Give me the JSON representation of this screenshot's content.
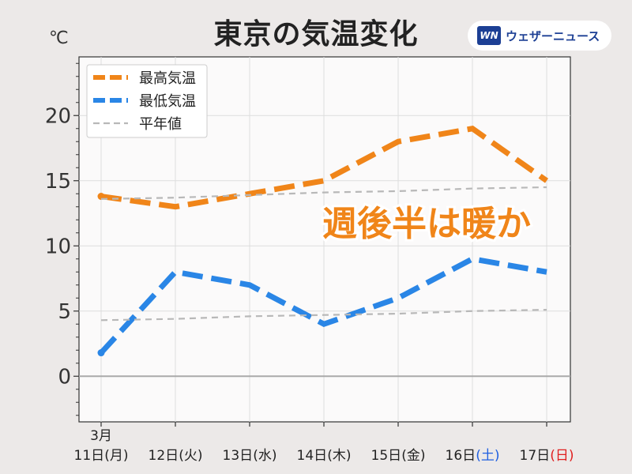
{
  "title": "東京の気温変化",
  "unit": "℃",
  "brand": {
    "logo": "WN",
    "name": "ウェザーニュース"
  },
  "annotation": {
    "text": "週後半は暖か",
    "color": "#f08519"
  },
  "legend": [
    {
      "label": "最高気温",
      "color": "#f08519",
      "style": "dashed-thick"
    },
    {
      "label": "最低気温",
      "color": "#2a86e6",
      "style": "dashed-thick"
    },
    {
      "label": "平年値",
      "color": "#b8b8b8",
      "style": "dashed-thin"
    }
  ],
  "chart_data": {
    "type": "line",
    "month_label": "3月",
    "categories": [
      {
        "day": "11日",
        "dow": "(月)",
        "dow_color": "#222222"
      },
      {
        "day": "12日",
        "dow": "(火)",
        "dow_color": "#222222"
      },
      {
        "day": "13日",
        "dow": "(水)",
        "dow_color": "#222222"
      },
      {
        "day": "14日",
        "dow": "(木)",
        "dow_color": "#222222"
      },
      {
        "day": "15日",
        "dow": "(金)",
        "dow_color": "#222222"
      },
      {
        "day": "16日",
        "dow": "(土)",
        "dow_color": "#1f5fe0"
      },
      {
        "day": "17日",
        "dow": "(日)",
        "dow_color": "#e02020"
      }
    ],
    "series": [
      {
        "name": "最高気温",
        "color": "#f08519",
        "values": [
          13.8,
          13.0,
          14.0,
          15.0,
          18.0,
          19.0,
          15.0
        ]
      },
      {
        "name": "最低気温",
        "color": "#2a86e6",
        "values": [
          1.8,
          8.0,
          7.0,
          4.0,
          6.0,
          9.0,
          8.0
        ]
      },
      {
        "name": "平年値",
        "color": "#b8b8b8",
        "values": [
          13.6,
          13.7,
          13.9,
          14.1,
          14.2,
          14.4,
          14.5
        ]
      },
      {
        "name": "平年値",
        "color": "#b8b8b8",
        "values": [
          4.3,
          4.4,
          4.6,
          4.7,
          4.8,
          5.0,
          5.1
        ]
      }
    ],
    "yticks": [
      0,
      5,
      10,
      15,
      20
    ],
    "ylim": [
      -3.5,
      24.5
    ],
    "grid": true,
    "legend_position": "top-left"
  }
}
